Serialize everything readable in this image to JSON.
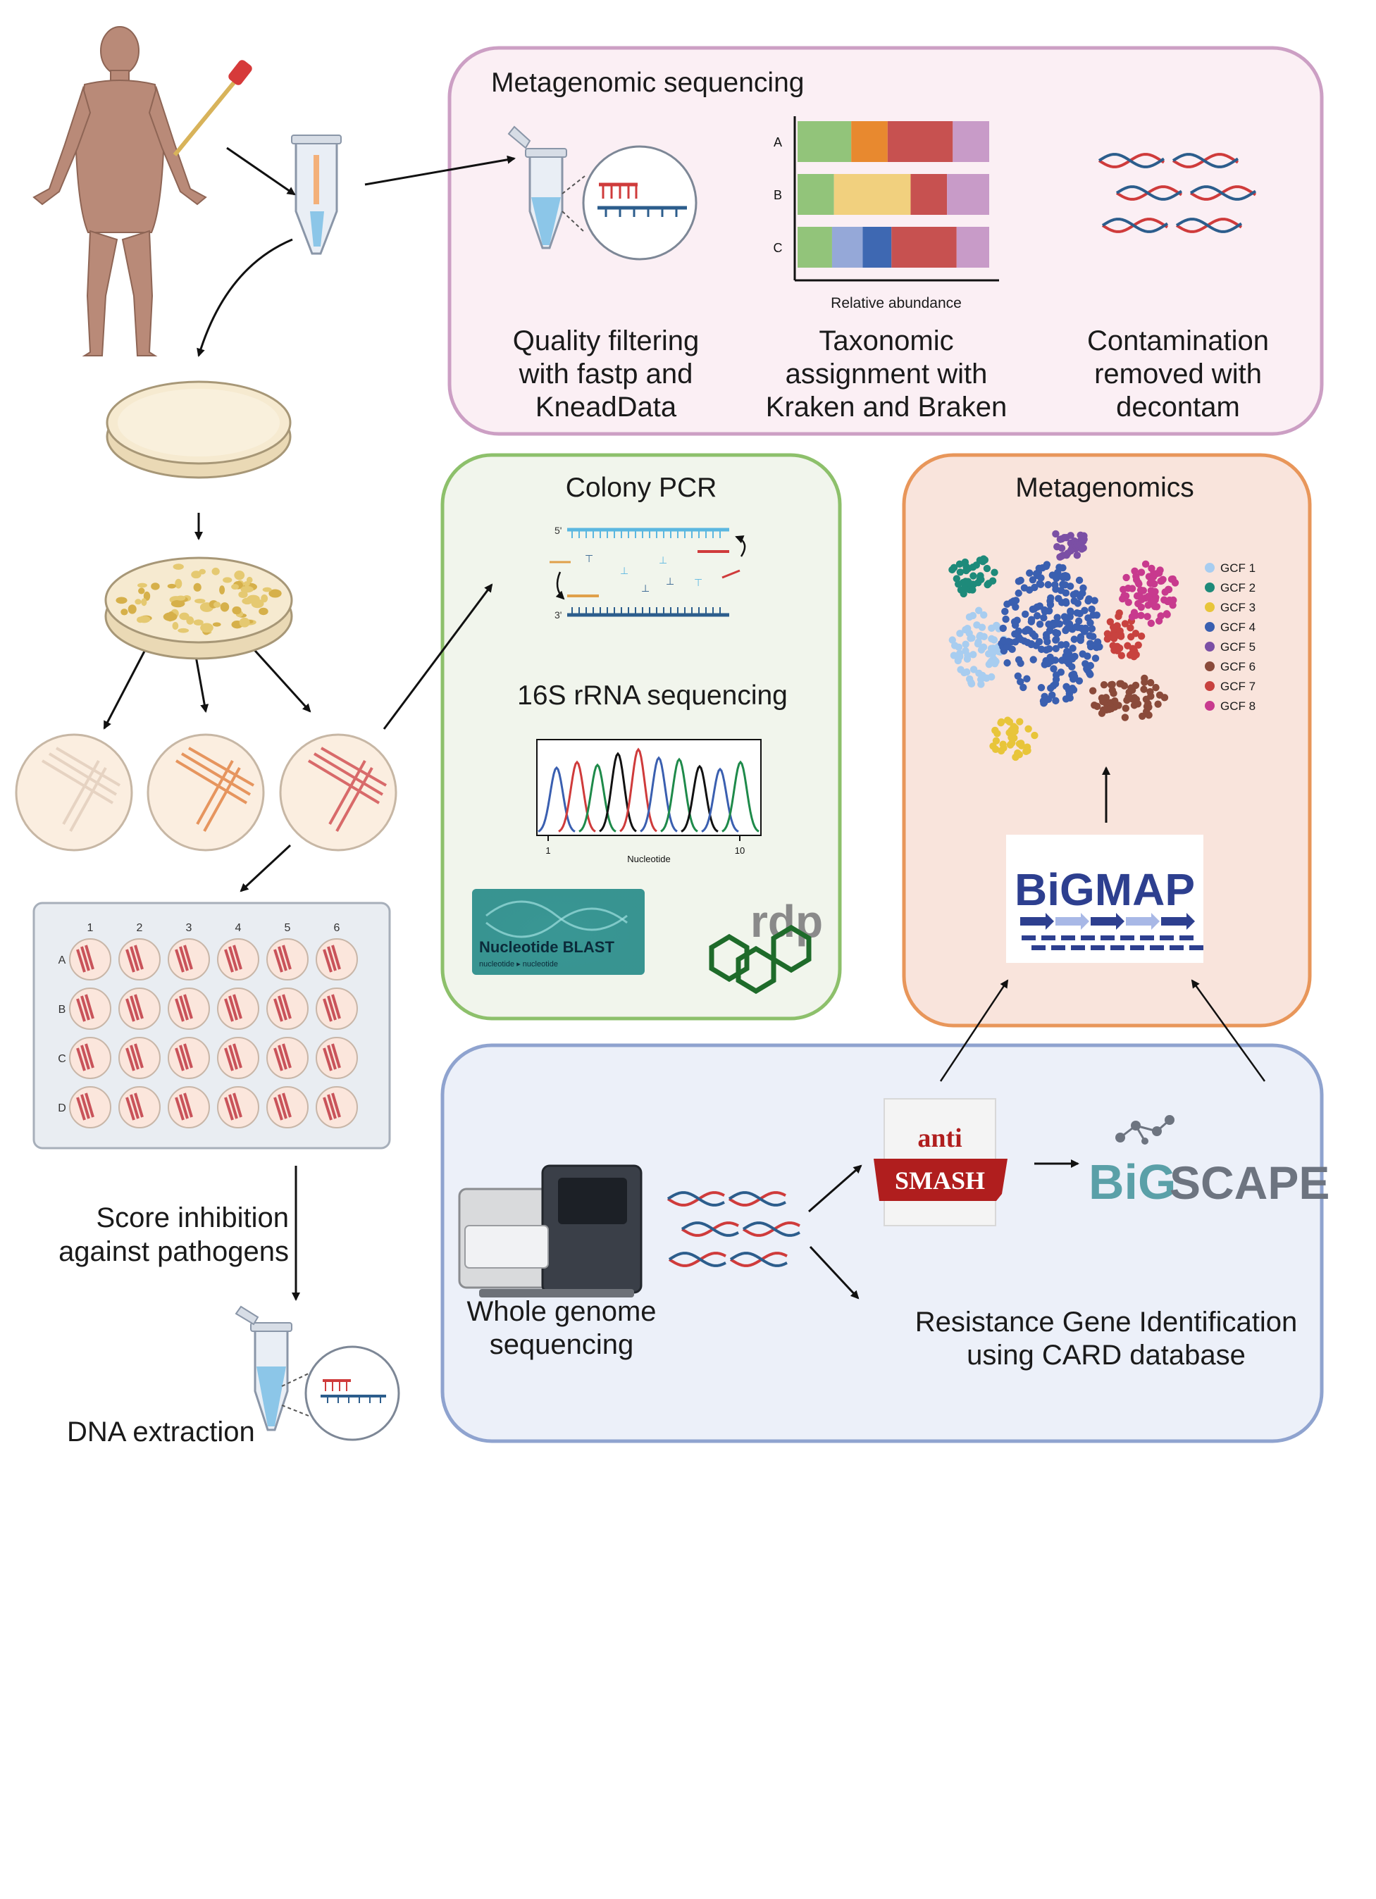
{
  "left_column": {
    "score_text_line1": "Score inhibition",
    "score_text_line2": "against pathogens",
    "dna_extraction": "DNA extraction",
    "plate_columns": [
      "1",
      "2",
      "3",
      "4",
      "5",
      "6"
    ],
    "plate_rows": [
      "A",
      "B",
      "C",
      "D"
    ]
  },
  "metagenomic_panel": {
    "title": "Metagenomic sequencing",
    "step1": [
      "Quality filtering",
      "with fastp and",
      "KneadData"
    ],
    "step2": [
      "Taxonomic",
      "assignment with",
      "Kraken and Braken"
    ],
    "step3": [
      "Contamination",
      "removed with",
      "decontam"
    ],
    "bar_chart": {
      "rows": [
        "A",
        "B",
        "C"
      ],
      "xlabel": "Relative abundance"
    }
  },
  "colony_pcr_panel": {
    "title": "Colony PCR",
    "subtitle": "16S rRNA sequencing",
    "pcr_labels": {
      "five_prime": "5'",
      "three_prime": "3'"
    },
    "chromatogram": {
      "xlabel": "Nucleotide",
      "tick_start": "1",
      "tick_end": "10"
    },
    "blast_logo": {
      "title": "Nucleotide BLAST",
      "subtitle": "nucleotide ▸ nucleotide"
    },
    "rdp_logo": "rdp"
  },
  "metagenomics_panel": {
    "title": "Metagenomics",
    "legend": [
      {
        "label": "GCF 1",
        "color": "#a8cdf0"
      },
      {
        "label": "GCF 2",
        "color": "#1e8a7a"
      },
      {
        "label": "GCF 3",
        "color": "#e8c53a"
      },
      {
        "label": "GCF 4",
        "color": "#3a5fb0"
      },
      {
        "label": "GCF 5",
        "color": "#7b4fa5"
      },
      {
        "label": "GCF 6",
        "color": "#8a4a3a"
      },
      {
        "label": "GCF 7",
        "color": "#c8423f"
      },
      {
        "label": "GCF 8",
        "color": "#c83a8e"
      }
    ],
    "bigmap_logo": "BiGMAP"
  },
  "wgs_panel": {
    "wgs_label": [
      "Whole genome",
      "sequencing"
    ],
    "antismash_top": "anti",
    "antismash_bottom": "SMASH",
    "bigscape_logo_a": "BiG",
    "bigscape_logo_b": "SCAPE",
    "resistance_text": [
      "Resistance Gene Identification",
      "using CARD database"
    ]
  },
  "colors": {
    "meta_seq_border": "#cc9fc4",
    "meta_seq_fill": "#fbeff4",
    "colony_border": "#8dc06b",
    "colony_fill": "#f1f5ec",
    "metagenomics_border": "#e8965a",
    "metagenomics_fill": "#f9e4dc",
    "wgs_border": "#8fa3cf",
    "wgs_fill": "#ecf0f9"
  }
}
